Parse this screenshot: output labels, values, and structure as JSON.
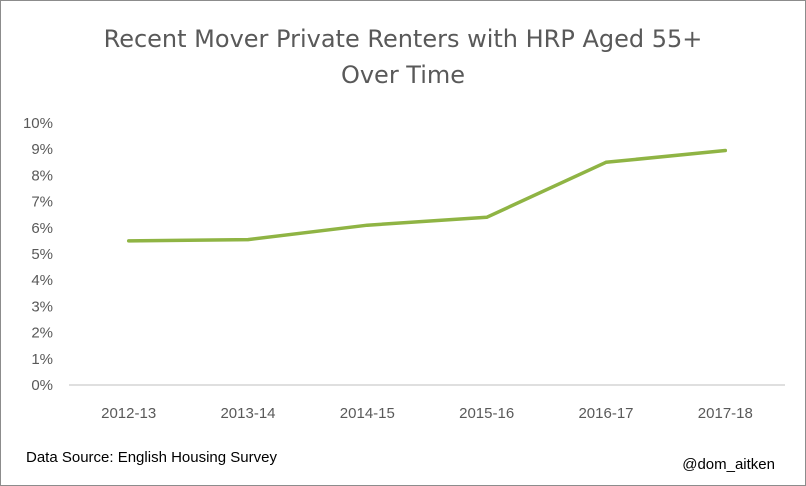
{
  "chart_data": {
    "type": "line",
    "title_lines": [
      "Recent Mover Private Renters with HRP Aged 55+",
      "Over Time"
    ],
    "xlabel": "",
    "ylabel": "",
    "categories": [
      "2012-13",
      "2013-14",
      "2014-15",
      "2015-16",
      "2016-17",
      "2017-18"
    ],
    "series": [
      {
        "values": [
          5.5,
          5.55,
          6.1,
          6.4,
          8.5,
          8.95
        ],
        "color": "#8fb444"
      }
    ],
    "ylim": [
      0,
      10
    ],
    "yticks": [
      "0%",
      "1%",
      "2%",
      "3%",
      "4%",
      "5%",
      "6%",
      "7%",
      "8%",
      "9%",
      "10%"
    ],
    "grid": false,
    "legend": "none"
  },
  "footer": {
    "source": "Data Source: English Housing Survey",
    "handle": "@dom_aitken"
  },
  "colors": {
    "axis": "#bfbfbf",
    "text": "#595959",
    "line": "#8fb444"
  }
}
